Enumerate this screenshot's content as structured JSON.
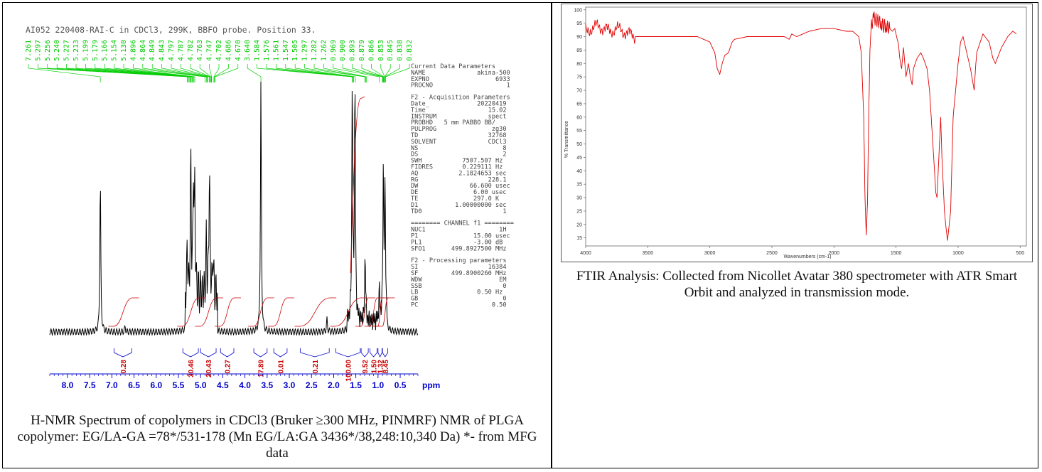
{
  "nmr": {
    "title": "AI052 220408-RAI-C in CDCl3, 299K, BBFO probe.  Position 33.",
    "peak_labels": [
      "7.261",
      "5.297",
      "5.256",
      "5.240",
      "5.227",
      "5.213",
      "5.199",
      "5.179",
      "5.166",
      "5.154",
      "5.130",
      "4.896",
      "4.864",
      "4.849",
      "4.843",
      "4.797",
      "4.787",
      "4.782",
      "4.763",
      "4.747",
      "4.702",
      "4.686",
      "4.670",
      "3.640",
      "1.584",
      "1.576",
      "1.561",
      "1.547",
      "1.505",
      "1.297",
      "1.282",
      "1.262",
      "0.969",
      "0.900",
      "0.893",
      "0.879",
      "0.866",
      "0.853",
      "0.845",
      "0.838",
      "0.832"
    ],
    "params": [
      {
        "text": "Current Data Parameters",
        "gap": false
      },
      {
        "text": "NAME              akina-500",
        "gap": false
      },
      {
        "text": "EXPNO                  6933",
        "gap": false
      },
      {
        "text": "PROCNO                    1",
        "gap": false
      },
      {
        "text": "F2 - Acquisition Parameters",
        "gap": true
      },
      {
        "text": "Date_             20220419",
        "gap": false
      },
      {
        "text": "Time                 15.02",
        "gap": false
      },
      {
        "text": "INSTRUM              spect",
        "gap": false
      },
      {
        "text": "PROBHD   5 mm PABBO BB/",
        "gap": false
      },
      {
        "text": "PULPROG               zg30",
        "gap": false
      },
      {
        "text": "TD                   32768",
        "gap": false
      },
      {
        "text": "SOLVENT              CDCl3",
        "gap": false
      },
      {
        "text": "NS                       8",
        "gap": false
      },
      {
        "text": "DS                       2",
        "gap": false
      },
      {
        "text": "SWH           7507.507 Hz",
        "gap": false
      },
      {
        "text": "FIDRES        0.229111 Hz",
        "gap": false
      },
      {
        "text": "AQ           2.1824653 sec",
        "gap": false
      },
      {
        "text": "RG                   228.1",
        "gap": false
      },
      {
        "text": "DW              66.600 usec",
        "gap": false
      },
      {
        "text": "DE               6.00 usec",
        "gap": false
      },
      {
        "text": "TE               297.0 K",
        "gap": false
      },
      {
        "text": "D1          1.00000000 sec",
        "gap": false
      },
      {
        "text": "TD0                      1",
        "gap": false
      },
      {
        "text": "======== CHANNEL f1 ========",
        "gap": true
      },
      {
        "text": "NUC1                    1H",
        "gap": false
      },
      {
        "text": "P1               15.00 usec",
        "gap": false
      },
      {
        "text": "PL1              -3.00 dB",
        "gap": false
      },
      {
        "text": "SFO1       499.8927500 MHz",
        "gap": false
      },
      {
        "text": "F2 - Processing parameters",
        "gap": true
      },
      {
        "text": "SI                   16384",
        "gap": false
      },
      {
        "text": "SF         499.8900260 MHz",
        "gap": false
      },
      {
        "text": "WDW                     EM",
        "gap": false
      },
      {
        "text": "SSB                      0",
        "gap": false
      },
      {
        "text": "LB                0.50 Hz",
        "gap": false
      },
      {
        "text": "GB                       0",
        "gap": false
      },
      {
        "text": "PC                    0.50",
        "gap": false
      }
    ],
    "caption": "H-NMR Spectrum of copolymers in CDCl3 (Bruker ≥300 MHz, PINMRF) NMR of PLGA copolymer: EG/LA-GA =78*/531-178 (Mn EG/LA:GA 3436*/38,248:10,340 Da) *- from MFG data"
  },
  "ftir": {
    "ylabel": "% Transmittance",
    "xlabel": "Wavenumbers (cm-1)",
    "caption": "FTIR Analysis: Collected from Nicollet Avatar 380 spectrometer with ATR Smart Orbit and analyzed in transmission mode."
  },
  "colors": {
    "nmr_trace": "#000000",
    "nmr_label": "#00cc00",
    "nmr_integral": "#cc0000",
    "nmr_axis": "#0000cc",
    "ir_trace": "#e00000"
  },
  "chart_data": [
    {
      "type": "line",
      "title": "AI052 220408-RAI-C in CDCl3, 299K, BBFO probe.  Position 33.",
      "xlabel": "ppm",
      "xlim": [
        8.4,
        0.1
      ],
      "xticks": [
        8.0,
        7.5,
        7.0,
        6.5,
        6.0,
        5.5,
        5.0,
        4.5,
        4.0,
        3.5,
        3.0,
        2.5,
        2.0,
        1.5,
        1.0,
        0.5
      ],
      "x_reversed": true,
      "peaks": [
        {
          "ppm": 7.26,
          "rel_height": 0.62
        },
        {
          "ppm": 6.7,
          "rel_height": 0.02
        },
        {
          "ppm": 5.3,
          "rel_height": 0.18
        },
        {
          "ppm": 5.22,
          "rel_height": 0.52
        },
        {
          "ppm": 5.16,
          "rel_height": 0.45
        },
        {
          "ppm": 5.13,
          "rel_height": 0.38
        },
        {
          "ppm": 4.87,
          "rel_height": 0.2
        },
        {
          "ppm": 4.8,
          "rel_height": 0.53
        },
        {
          "ppm": 4.72,
          "rel_height": 0.16
        },
        {
          "ppm": 3.64,
          "rel_height": 1.0
        },
        {
          "ppm": 2.15,
          "rel_height": 0.05
        },
        {
          "ppm": 1.58,
          "rel_height": 0.98
        },
        {
          "ppm": 1.52,
          "rel_height": 0.96
        },
        {
          "ppm": 1.29,
          "rel_height": 0.28
        },
        {
          "ppm": 0.97,
          "rel_height": 0.12
        },
        {
          "ppm": 0.88,
          "rel_height": 0.6
        },
        {
          "ppm": 0.84,
          "rel_height": 0.52
        }
      ],
      "integrals": [
        {
          "label": "0.28",
          "from": 6.95,
          "to": 6.55
        },
        {
          "label": "30.46",
          "from": 5.4,
          "to": 5.05
        },
        {
          "label": "20.43",
          "from": 5.0,
          "to": 4.65
        },
        {
          "label": "0.27",
          "from": 4.55,
          "to": 4.25
        },
        {
          "label": "17.89",
          "from": 3.8,
          "to": 3.5
        },
        {
          "label": "0.01",
          "from": 3.35,
          "to": 3.05
        },
        {
          "label": "0.21",
          "from": 2.75,
          "to": 2.1
        },
        {
          "label": "100.00",
          "from": 1.95,
          "to": 1.4
        },
        {
          "label": "9.52",
          "from": 1.38,
          "to": 1.22
        },
        {
          "label": "1.50",
          "from": 1.18,
          "to": 1.02
        },
        {
          "label": "1.32",
          "from": 1.0,
          "to": 0.91
        },
        {
          "label": "8.45",
          "from": 0.9,
          "to": 0.78
        }
      ]
    },
    {
      "type": "line",
      "xlabel": "Wavenumbers (cm-1)",
      "ylabel": "% Transmittance",
      "xlim": [
        4000,
        450
      ],
      "ylim": [
        12,
        101
      ],
      "xticks": [
        4000,
        3500,
        3000,
        2500,
        2000,
        1500,
        1000,
        500
      ],
      "yticks": [
        15,
        20,
        25,
        30,
        35,
        40,
        45,
        50,
        55,
        60,
        65,
        70,
        75,
        80,
        85,
        90,
        95,
        100
      ],
      "series": [
        {
          "x": [
            4000,
            3950,
            3900,
            3850,
            3800,
            3750,
            3700,
            3650,
            3600,
            3500,
            3300,
            3100,
            3050,
            3000,
            2960,
            2940,
            2920,
            2900,
            2880,
            2850,
            2820,
            2800,
            2700,
            2500,
            2400,
            2360,
            2340,
            2300,
            2200,
            2100,
            2000,
            1900,
            1850,
            1800,
            1780,
            1760,
            1750,
            1740,
            1730,
            1720,
            1710,
            1700,
            1680,
            1650,
            1620,
            1600,
            1580,
            1550,
            1530,
            1510,
            1480,
            1470,
            1455,
            1440,
            1420,
            1400,
            1385,
            1370,
            1360,
            1330,
            1300,
            1280,
            1250,
            1230,
            1210,
            1190,
            1180,
            1170,
            1160,
            1140,
            1130,
            1120,
            1110,
            1100,
            1095,
            1085,
            1060,
            1040,
            1000,
            980,
            960,
            940,
            900,
            870,
            860,
            850,
            800,
            750,
            720,
            700,
            650,
            600,
            560,
            530
          ],
          "y": [
            92,
            93,
            94,
            93,
            92,
            93,
            92,
            91,
            90,
            90,
            90,
            90,
            89,
            88,
            84,
            78,
            76,
            80,
            83,
            84,
            88,
            89,
            90,
            90,
            90,
            89,
            91,
            90,
            92,
            93,
            93,
            92,
            92,
            90,
            84,
            60,
            30,
            16,
            28,
            60,
            85,
            94,
            97,
            96,
            95,
            94,
            94,
            93,
            92,
            93,
            87,
            82,
            78,
            86,
            75,
            80,
            75,
            72,
            78,
            82,
            84,
            82,
            78,
            70,
            55,
            40,
            32,
            30,
            40,
            60,
            45,
            35,
            25,
            20,
            18,
            14,
            25,
            60,
            80,
            88,
            90,
            86,
            78,
            70,
            78,
            84,
            91,
            88,
            82,
            80,
            86,
            90,
            92,
            91
          ]
        }
      ]
    }
  ]
}
